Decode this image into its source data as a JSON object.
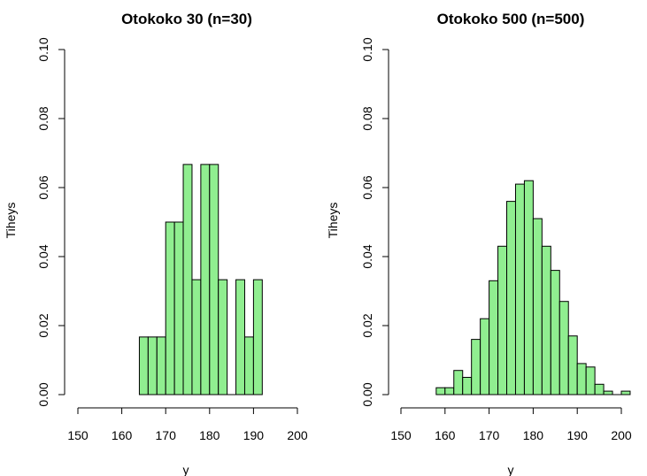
{
  "colors": {
    "bar_fill": "#90ee90",
    "bar_stroke": "#000000",
    "background": "#ffffff"
  },
  "chart_data": [
    {
      "type": "bar",
      "title": "Otokoko 30 (n=30)",
      "xlabel": "y",
      "ylabel": "Tiheys",
      "xlim": [
        150,
        200
      ],
      "ylim": [
        0,
        0.1
      ],
      "x_ticks": [
        "150",
        "160",
        "170",
        "180",
        "190",
        "200"
      ],
      "y_ticks": [
        "0.00",
        "0.02",
        "0.04",
        "0.06",
        "0.08",
        "0.10"
      ],
      "grid": false,
      "bin_width": 2,
      "bin_starts": [
        164,
        166,
        168,
        170,
        172,
        174,
        176,
        178,
        180,
        182,
        184,
        186,
        188,
        190
      ],
      "values": [
        0.0167,
        0.0167,
        0.0167,
        0.05,
        0.05,
        0.0667,
        0.0333,
        0.0667,
        0.0667,
        0.0333,
        0,
        0.0333,
        0.0167,
        0.0333
      ]
    },
    {
      "type": "bar",
      "title": "Otokoko 500 (n=500)",
      "xlabel": "y",
      "ylabel": "Tiheys",
      "xlim": [
        150,
        200
      ],
      "ylim": [
        0,
        0.1
      ],
      "x_ticks": [
        "150",
        "160",
        "170",
        "180",
        "190",
        "200"
      ],
      "y_ticks": [
        "0.00",
        "0.02",
        "0.04",
        "0.06",
        "0.08",
        "0.10"
      ],
      "grid": false,
      "bin_width": 2,
      "bin_starts": [
        158,
        160,
        162,
        164,
        166,
        168,
        170,
        172,
        174,
        176,
        178,
        180,
        182,
        184,
        186,
        188,
        190,
        192,
        194,
        196,
        198,
        200
      ],
      "values": [
        0.002,
        0.002,
        0.007,
        0.005,
        0.016,
        0.022,
        0.033,
        0.043,
        0.056,
        0.061,
        0.062,
        0.051,
        0.043,
        0.036,
        0.027,
        0.017,
        0.009,
        0.008,
        0.003,
        0.001,
        0,
        0.001
      ]
    }
  ]
}
